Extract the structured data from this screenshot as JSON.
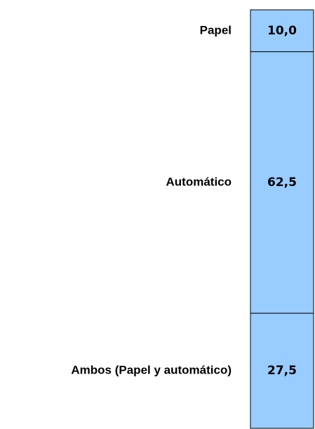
{
  "chart_data": {
    "type": "bar",
    "stacked": true,
    "categories": [
      "Papel",
      "Automático",
      "Ambos (Papel y automático)"
    ],
    "values": [
      10.0,
      62.5,
      27.5
    ],
    "value_labels": [
      "10,0",
      "62,5",
      "27,5"
    ],
    "color": "#99ccff",
    "ylim": [
      0,
      100
    ]
  }
}
